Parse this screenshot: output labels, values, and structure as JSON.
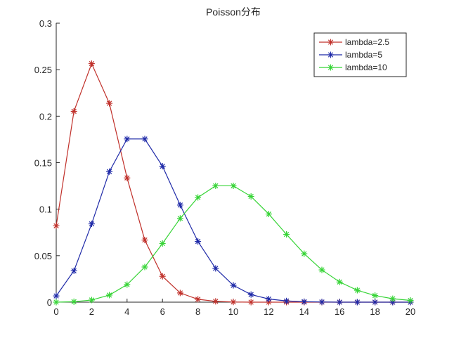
{
  "chart_data": {
    "type": "line",
    "title": "Poisson分布",
    "xlabel": "",
    "ylabel": "",
    "xlim": [
      0,
      20
    ],
    "ylim": [
      0,
      0.3
    ],
    "x": [
      0,
      1,
      2,
      3,
      4,
      5,
      6,
      7,
      8,
      9,
      10,
      11,
      12,
      13,
      14,
      15,
      16,
      17,
      18,
      19,
      20
    ],
    "x_ticks": [
      "0",
      "2",
      "4",
      "6",
      "8",
      "10",
      "12",
      "14",
      "16",
      "18",
      "20"
    ],
    "y_ticks": [
      "0",
      "0.05",
      "0.1",
      "0.15",
      "0.2",
      "0.25",
      "0.3"
    ],
    "grid": false,
    "legend_position": "top-right",
    "marker": "asterisk",
    "series": [
      {
        "name": "lambda=2.5",
        "color": "#c0302a",
        "values": [
          0.0821,
          0.2052,
          0.2565,
          0.2138,
          0.1336,
          0.0668,
          0.0278,
          0.0099,
          0.0031,
          0.0009,
          0.0002,
          0.0,
          0.0,
          0.0,
          0.0,
          0.0,
          0.0,
          0.0,
          0.0,
          0.0,
          0.0
        ]
      },
      {
        "name": "lambda=5",
        "color": "#1f2aa8",
        "values": [
          0.0067,
          0.0337,
          0.0842,
          0.1404,
          0.1755,
          0.1755,
          0.1462,
          0.1044,
          0.0653,
          0.0363,
          0.0181,
          0.0082,
          0.0034,
          0.0013,
          0.0005,
          0.0002,
          0.0,
          0.0,
          0.0,
          0.0,
          0.0
        ]
      },
      {
        "name": "lambda=10",
        "color": "#36d436",
        "values": [
          0.0,
          0.0005,
          0.0023,
          0.0076,
          0.0189,
          0.0378,
          0.0631,
          0.0901,
          0.1126,
          0.1251,
          0.1251,
          0.1137,
          0.0948,
          0.0729,
          0.0521,
          0.0347,
          0.0217,
          0.0128,
          0.0071,
          0.0037,
          0.0019
        ]
      }
    ]
  }
}
